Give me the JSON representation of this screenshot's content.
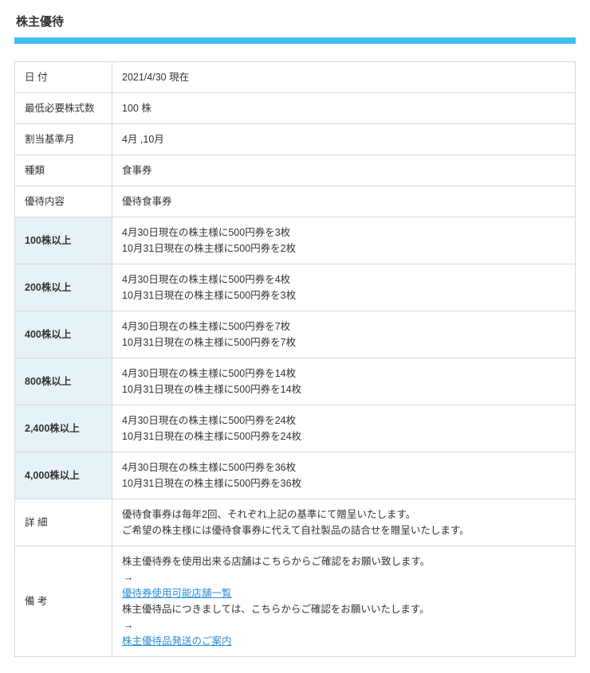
{
  "title": "株主優待",
  "accent_color": "#3dc0ee",
  "rows": {
    "date": {
      "label": "日 付",
      "value": "2021/4/30 現在"
    },
    "min_shares": {
      "label": "最低必要株式数",
      "value": "100 株"
    },
    "base_month": {
      "label": "割当基準月",
      "value": "4月 ,10月"
    },
    "kind": {
      "label": "種類",
      "value": "食事券"
    },
    "content": {
      "label": "優待内容",
      "value": "優待食事券"
    }
  },
  "tiers": [
    {
      "label": "100株以上",
      "line1": "4月30日現在の株主様に500円券を3枚",
      "line2": "10月31日現在の株主様に500円券を2枚"
    },
    {
      "label": "200株以上",
      "line1": "4月30日現在の株主様に500円券を4枚",
      "line2": "10月31日現在の株主様に500円券を3枚"
    },
    {
      "label": "400株以上",
      "line1": "4月30日現在の株主様に500円券を7枚",
      "line2": "10月31日現在の株主様に500円券を7枚"
    },
    {
      "label": "800株以上",
      "line1": "4月30日現在の株主様に500円券を14枚",
      "line2": "10月31日現在の株主様に500円券を14枚"
    },
    {
      "label": "2,400株以上",
      "line1": "4月30日現在の株主様に500円券を24枚",
      "line2": "10月31日現在の株主様に500円券を24枚"
    },
    {
      "label": "4,000株以上",
      "line1": "4月30日現在の株主様に500円券を36枚",
      "line2": "10月31日現在の株主様に500円券を36枚"
    }
  ],
  "detail": {
    "label": "詳 細",
    "line1": "優待食事券は毎年2回、それぞれ上記の基準にて贈呈いたします。",
    "line2": "ご希望の株主様には優待食事券に代えて自社製品の詰合せを贈呈いたします。"
  },
  "notes": {
    "label": "備 考",
    "line1_text": "株主優待券を使用出来る店舗はこちらからご確認をお願い致します。",
    "line1_link": "優待券使用可能店舗一覧",
    "line2_text": "株主優待品につきましては、こちらからご確認をお願いいたします。",
    "line2_link": "株主優待品発送のご案内"
  }
}
